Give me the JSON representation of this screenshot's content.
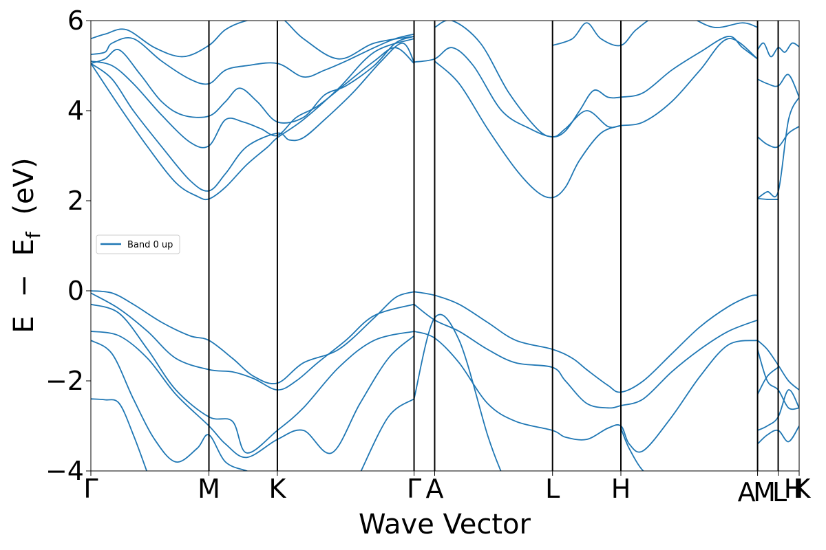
{
  "chart_data": {
    "type": "line",
    "title": "",
    "xlabel": "Wave Vector",
    "ylabel_parts": [
      "E",
      "−",
      "E",
      "f",
      "(eV)"
    ],
    "ylim": [
      -4,
      6
    ],
    "yticks": [
      -4,
      -2,
      0,
      2,
      4,
      6
    ],
    "ytick_labels": [
      "−4",
      "−2",
      "0",
      "2",
      "4",
      "6"
    ],
    "x_range": [
      0,
      1
    ],
    "kpoint_positions": [
      0,
      0.1667,
      0.2633,
      0.4563,
      0.4854,
      0.6518,
      0.7483,
      0.9413,
      0.9704,
      1.0
    ],
    "kpoint_labels": [
      "Γ",
      "M",
      "K",
      "Γ",
      "A",
      "L",
      "H",
      "A",
      "M",
      "L",
      "H",
      "K"
    ],
    "kpoint_label_positions": [
      0,
      0.1667,
      0.2633,
      0.4563,
      0.4854,
      0.6518,
      0.7483,
      0.9413,
      0.9704,
      0.9704,
      1.0,
      1.0
    ],
    "legend": {
      "entries": [
        "Band 0 up"
      ],
      "placement": "center-left",
      "color": "#1f77b4"
    },
    "line_color": "#1f77b4",
    "series": [
      {
        "name": "cond-1",
        "x": [
          0,
          0.02,
          0.05,
          0.09,
          0.13,
          0.1667,
          0.19,
          0.22,
          0.2633,
          0.3,
          0.35,
          0.4,
          0.4563
        ],
        "y": [
          5.6,
          5.7,
          5.8,
          5.4,
          5.2,
          5.45,
          5.8,
          6.0,
          6.1,
          5.6,
          5.15,
          5.5,
          5.65
        ]
      },
      {
        "name": "cond-2",
        "x": [
          0,
          0.02,
          0.03,
          0.06,
          0.1,
          0.14,
          0.1667,
          0.19,
          0.22,
          0.2633,
          0.3,
          0.33,
          0.36,
          0.4,
          0.43,
          0.4563
        ],
        "y": [
          5.25,
          5.3,
          5.5,
          5.6,
          5.1,
          4.7,
          4.6,
          4.9,
          5.0,
          5.05,
          4.75,
          4.9,
          5.1,
          5.4,
          5.6,
          5.7
        ]
      },
      {
        "name": "cond-3",
        "x": [
          0,
          0.02,
          0.04,
          0.07,
          0.1,
          0.13,
          0.1667,
          0.19,
          0.21,
          0.235,
          0.2633,
          0.3,
          0.33,
          0.36,
          0.4,
          0.43,
          0.4563
        ],
        "y": [
          5.05,
          5.15,
          5.35,
          4.8,
          4.2,
          3.9,
          3.88,
          4.2,
          4.5,
          4.2,
          3.75,
          3.85,
          4.35,
          4.55,
          5.0,
          5.5,
          5.65
        ]
      },
      {
        "name": "cond-4",
        "x": [
          0,
          0.03,
          0.06,
          0.1,
          0.14,
          0.1667,
          0.19,
          0.215,
          0.24,
          0.2633,
          0.29,
          0.32,
          0.36,
          0.4,
          0.43,
          0.4563
        ],
        "y": [
          5.1,
          5.0,
          4.6,
          3.9,
          3.3,
          3.22,
          3.8,
          3.75,
          3.6,
          3.45,
          3.85,
          4.1,
          4.6,
          5.1,
          5.4,
          5.05
        ]
      },
      {
        "name": "cond-5",
        "x": [
          0,
          0.03,
          0.06,
          0.1,
          0.14,
          0.1667,
          0.19,
          0.22,
          0.2633,
          0.28,
          0.3,
          0.33,
          0.37,
          0.41,
          0.44,
          0.4563
        ],
        "y": [
          5.05,
          4.7,
          4.0,
          3.2,
          2.45,
          2.22,
          2.6,
          3.2,
          3.5,
          3.35,
          3.4,
          3.8,
          4.4,
          5.1,
          5.5,
          5.08
        ]
      },
      {
        "name": "cond-6",
        "x": [
          0,
          0.04,
          0.08,
          0.12,
          0.15,
          0.1667,
          0.19,
          0.22,
          0.25,
          0.2633,
          0.3,
          0.35,
          0.4,
          0.4563
        ],
        "y": [
          5.05,
          4.1,
          3.2,
          2.4,
          2.1,
          2.04,
          2.3,
          2.8,
          3.2,
          3.4,
          3.8,
          4.5,
          5.3,
          5.6
        ]
      },
      {
        "name": "cond-7",
        "x": [
          0.4563,
          0.4854,
          0.51,
          0.54,
          0.58,
          0.62,
          0.6518,
          0.67,
          0.7,
          0.73,
          0.7483,
          0.78,
          0.82,
          0.86,
          0.9,
          0.9413
        ],
        "y": [
          5.08,
          5.15,
          5.4,
          5.0,
          4.0,
          3.6,
          3.42,
          3.6,
          4.0,
          3.65,
          3.67,
          3.75,
          4.2,
          4.9,
          5.6,
          5.15
        ]
      },
      {
        "name": "cond-8",
        "x": [
          0.4854,
          0.51,
          0.55,
          0.59,
          0.63,
          0.6518,
          0.67,
          0.69,
          0.71,
          0.73,
          0.7483,
          0.78,
          0.82,
          0.86,
          0.9,
          0.92,
          0.9413
        ],
        "y": [
          5.85,
          6.0,
          5.5,
          4.4,
          3.6,
          3.42,
          3.55,
          4.0,
          4.45,
          4.3,
          4.3,
          4.4,
          4.9,
          5.3,
          5.65,
          5.4,
          5.15
        ]
      },
      {
        "name": "cond-9",
        "x": [
          0.4854,
          0.52,
          0.56,
          0.6,
          0.63,
          0.6518,
          0.67,
          0.69,
          0.72,
          0.7483
        ],
        "y": [
          5.1,
          4.6,
          3.6,
          2.7,
          2.2,
          2.07,
          2.3,
          2.9,
          3.5,
          3.67
        ]
      },
      {
        "name": "cond-10",
        "x": [
          0.6518,
          0.68,
          0.7,
          0.72,
          0.7483,
          0.77,
          0.8,
          0.84,
          0.88,
          0.92,
          0.9413
        ],
        "y": [
          5.45,
          5.6,
          5.95,
          5.6,
          5.45,
          5.8,
          6.1,
          6.1,
          5.85,
          5.95,
          5.85
        ]
      },
      {
        "name": "cond-11",
        "x": [
          0.9413,
          0.95,
          0.96,
          0.9704,
          0.98,
          0.99,
          1.0
        ],
        "y": [
          5.35,
          5.5,
          5.2,
          5.4,
          5.3,
          5.5,
          5.42
        ]
      },
      {
        "name": "cond-12",
        "x": [
          0.9413,
          0.955,
          0.9704,
          0.985,
          1.0
        ],
        "y": [
          4.7,
          4.6,
          4.55,
          4.8,
          4.3
        ]
      },
      {
        "name": "cond-13",
        "x": [
          0.9413,
          0.955,
          0.9704,
          0.985,
          1.0
        ],
        "y": [
          3.42,
          3.25,
          3.2,
          3.5,
          3.65
        ]
      },
      {
        "name": "cond-14",
        "x": [
          0.9413,
          0.955,
          0.9704,
          0.985,
          1.0
        ],
        "y": [
          2.05,
          2.2,
          2.2,
          3.8,
          4.3
        ]
      },
      {
        "name": "cond-15",
        "x": [
          0.9413,
          0.955,
          0.9704
        ],
        "y": [
          2.05,
          2.03,
          2.03
        ]
      },
      {
        "name": "val-1",
        "x": [
          0,
          0.03,
          0.06,
          0.1,
          0.14,
          0.1667,
          0.2,
          0.23,
          0.2633,
          0.3,
          0.35,
          0.4,
          0.43,
          0.4563
        ],
        "y": [
          0,
          -0.05,
          -0.3,
          -0.7,
          -1.0,
          -1.1,
          -1.5,
          -1.9,
          -2.05,
          -1.6,
          -1.3,
          -0.6,
          -0.15,
          -0.02
        ]
      },
      {
        "name": "val-2",
        "x": [
          0.4563,
          0.4854,
          0.52,
          0.56,
          0.6,
          0.6518,
          0.68,
          0.7,
          0.73,
          0.7483,
          0.78,
          0.82,
          0.86,
          0.9,
          0.93,
          0.9413
        ],
        "y": [
          -0.02,
          -0.1,
          -0.3,
          -0.7,
          -1.1,
          -1.3,
          -1.5,
          -1.75,
          -2.1,
          -2.25,
          -2.0,
          -1.4,
          -0.8,
          -0.35,
          -0.12,
          -0.1
        ]
      },
      {
        "name": "val-3",
        "x": [
          0,
          0.04,
          0.08,
          0.12,
          0.1667,
          0.2,
          0.23,
          0.2633,
          0.29,
          0.32,
          0.36,
          0.4,
          0.4563
        ],
        "y": [
          -0.05,
          -0.4,
          -0.9,
          -1.5,
          -1.75,
          -1.8,
          -1.95,
          -2.2,
          -2.0,
          -1.6,
          -1.1,
          -0.55,
          -0.3
        ]
      },
      {
        "name": "val-4",
        "x": [
          0.4563,
          0.4854,
          0.52,
          0.56,
          0.6,
          0.6518,
          0.67,
          0.7,
          0.73,
          0.7483,
          0.78,
          0.82,
          0.86,
          0.9,
          0.9413
        ],
        "y": [
          -0.3,
          -0.65,
          -0.9,
          -1.3,
          -1.6,
          -1.7,
          -2.0,
          -2.5,
          -2.6,
          -2.55,
          -2.4,
          -1.8,
          -1.3,
          -0.9,
          -0.65
        ]
      },
      {
        "name": "val-5",
        "x": [
          0,
          0.04,
          0.08,
          0.12,
          0.1667,
          0.2,
          0.22,
          0.2633,
          0.3,
          0.35,
          0.4,
          0.4563
        ],
        "y": [
          -0.3,
          -0.5,
          -1.3,
          -2.2,
          -2.8,
          -2.9,
          -3.6,
          -3.1,
          -2.6,
          -1.7,
          -1.1,
          -0.9
        ]
      },
      {
        "name": "val-6",
        "x": [
          0.4563,
          0.4854,
          0.52,
          0.56,
          0.6,
          0.6518,
          0.67,
          0.7,
          0.73,
          0.7483,
          0.76,
          0.78,
          0.82,
          0.86,
          0.9,
          0.9413
        ],
        "y": [
          -0.9,
          -1.05,
          -1.6,
          -2.5,
          -2.9,
          -3.1,
          -3.25,
          -3.3,
          -3.05,
          -3.0,
          -3.4,
          -3.55,
          -2.8,
          -1.9,
          -1.2,
          -1.1
        ]
      },
      {
        "name": "val-7",
        "x": [
          0,
          0.04,
          0.08,
          0.12,
          0.1667,
          0.19,
          0.22,
          0.2633,
          0.3,
          0.34,
          0.38,
          0.42,
          0.4563
        ],
        "y": [
          -0.9,
          -1.0,
          -1.5,
          -2.3,
          -3.0,
          -3.4,
          -3.7,
          -3.3,
          -3.1,
          -3.6,
          -2.5,
          -1.5,
          -1.0
        ]
      },
      {
        "name": "val-8",
        "x": [
          0,
          0.03,
          0.06,
          0.09,
          0.12,
          0.15,
          0.1667,
          0.19,
          0.22,
          0.24
        ],
        "y": [
          -1.1,
          -1.4,
          -2.4,
          -3.3,
          -3.8,
          -3.5,
          -3.2,
          -3.8,
          -4.0,
          -4.1
        ]
      },
      {
        "name": "val-9",
        "x": [
          0,
          0.02,
          0.04,
          0.06,
          0.08
        ],
        "y": [
          -2.4,
          -2.42,
          -2.5,
          -3.2,
          -4.05
        ]
      },
      {
        "name": "val-10",
        "x": [
          0.38,
          0.42,
          0.4563
        ],
        "y": [
          -4.05,
          -2.8,
          -2.4
        ]
      },
      {
        "name": "val-11",
        "x": [
          0.4563,
          0.4854,
          0.52,
          0.56,
          0.58
        ],
        "y": [
          -2.4,
          -0.6,
          -1.1,
          -3.2,
          -4.05
        ]
      },
      {
        "name": "val-12",
        "x": [
          0.7483,
          0.76,
          0.78,
          0.8
        ],
        "y": [
          -3.05,
          -3.5,
          -4.0,
          -4.1
        ]
      },
      {
        "name": "val-13",
        "x": [
          0.9413,
          0.955,
          0.9704,
          0.985,
          1.0
        ],
        "y": [
          -1.1,
          -1.3,
          -1.65,
          -2.0,
          -2.2
        ]
      },
      {
        "name": "val-14",
        "x": [
          0.9413,
          0.955,
          0.9704,
          0.985,
          1.0
        ],
        "y": [
          -3.1,
          -3.0,
          -2.8,
          -2.2,
          -2.6
        ]
      },
      {
        "name": "val-15",
        "x": [
          0.9413,
          0.955,
          0.9704,
          0.985,
          1.0
        ],
        "y": [
          -3.4,
          -3.2,
          -3.1,
          -3.35,
          -3.0
        ]
      },
      {
        "name": "val-16",
        "x": [
          0.9413,
          0.955,
          0.9704,
          0.985,
          1.0
        ],
        "y": [
          -1.3,
          -2.0,
          -2.2,
          -2.6,
          -2.6
        ]
      },
      {
        "name": "val-17",
        "x": [
          0.9413,
          0.955,
          0.9704
        ],
        "y": [
          -2.3,
          -1.9,
          -1.7
        ]
      }
    ]
  }
}
